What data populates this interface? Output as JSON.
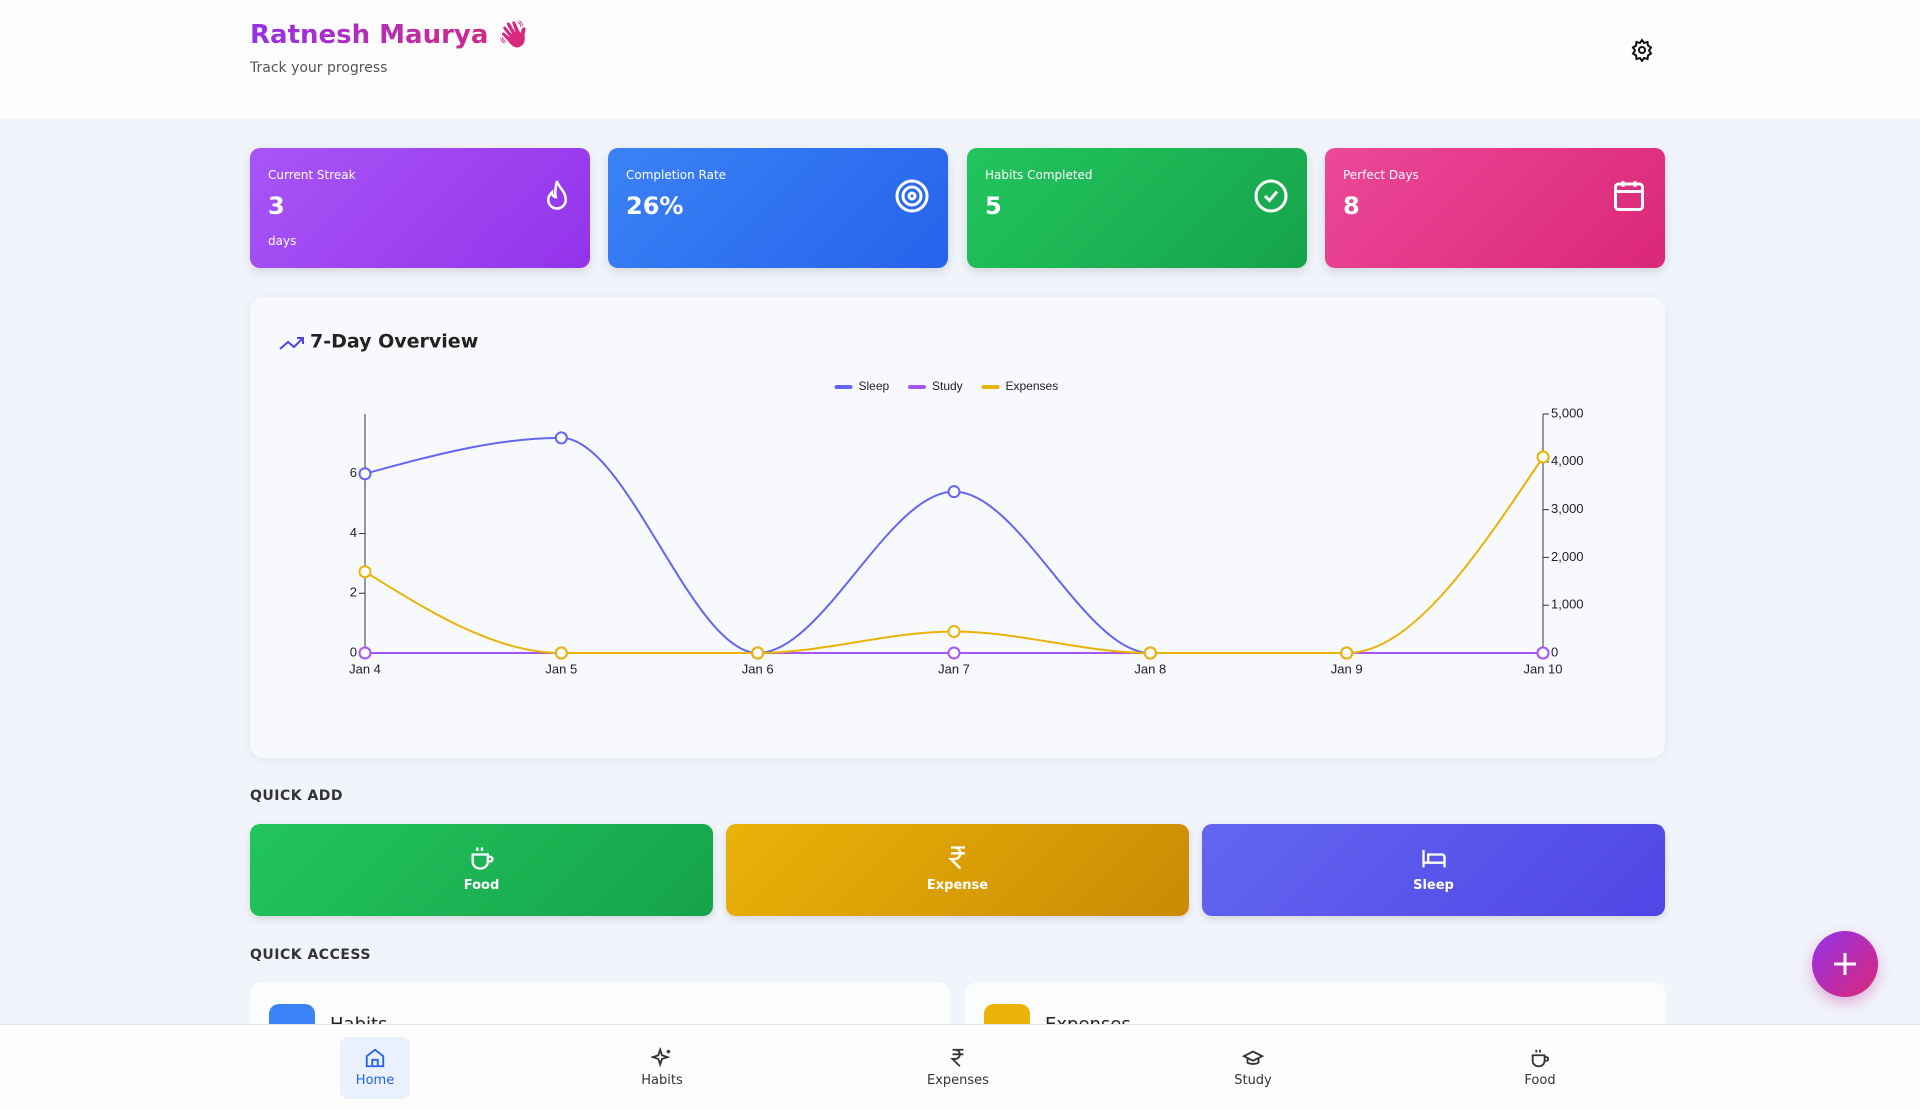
{
  "header": {
    "title": "Ratnesh Maurya 👋",
    "subtitle": "Track your progress"
  },
  "stats": [
    {
      "label": "Current Streak",
      "value": "3",
      "unit": "days"
    },
    {
      "label": "Completion Rate",
      "value": "26%"
    },
    {
      "label": "Habits Completed",
      "value": "5"
    },
    {
      "label": "Perfect Days",
      "value": "8"
    }
  ],
  "chart_data": {
    "type": "line",
    "title": "7-Day Overview",
    "categories": [
      "Jan 4",
      "Jan 5",
      "Jan 6",
      "Jan 7",
      "Jan 8",
      "Jan 9",
      "Jan 10"
    ],
    "series": [
      {
        "name": "Sleep",
        "color": "#6366f1",
        "values": [
          6,
          7.2,
          0,
          5.4,
          0,
          0,
          0
        ]
      },
      {
        "name": "Study",
        "color": "#a855f7",
        "values": [
          0,
          0,
          0,
          0,
          0,
          0,
          0
        ]
      },
      {
        "name": "Expenses",
        "color": "#eab308",
        "axis": "y2",
        "values": [
          1700,
          0,
          0,
          450,
          0,
          0,
          4100
        ]
      }
    ],
    "ylim": [
      0,
      8
    ],
    "yticks": [
      0,
      2,
      4,
      6
    ],
    "y2lim": [
      0,
      5000
    ],
    "y2ticks": [
      0,
      {
        "value": 1000,
        "label": "1,000"
      },
      {
        "value": 2000,
        "label": "2,000"
      },
      {
        "value": 3000,
        "label": "3,000"
      },
      {
        "value": 4000,
        "label": "4,000"
      },
      {
        "value": 5000,
        "label": "5,000"
      }
    ],
    "legend": "top"
  },
  "quick_add": {
    "title": "QUICK ADD",
    "items": [
      "Food",
      "Expense",
      "Sleep"
    ]
  },
  "quick_access": {
    "title": "QUICK ACCESS",
    "items": [
      "Habits",
      "Expenses"
    ]
  },
  "nav": [
    "Home",
    "Habits",
    "Expenses",
    "Study",
    "Food"
  ]
}
